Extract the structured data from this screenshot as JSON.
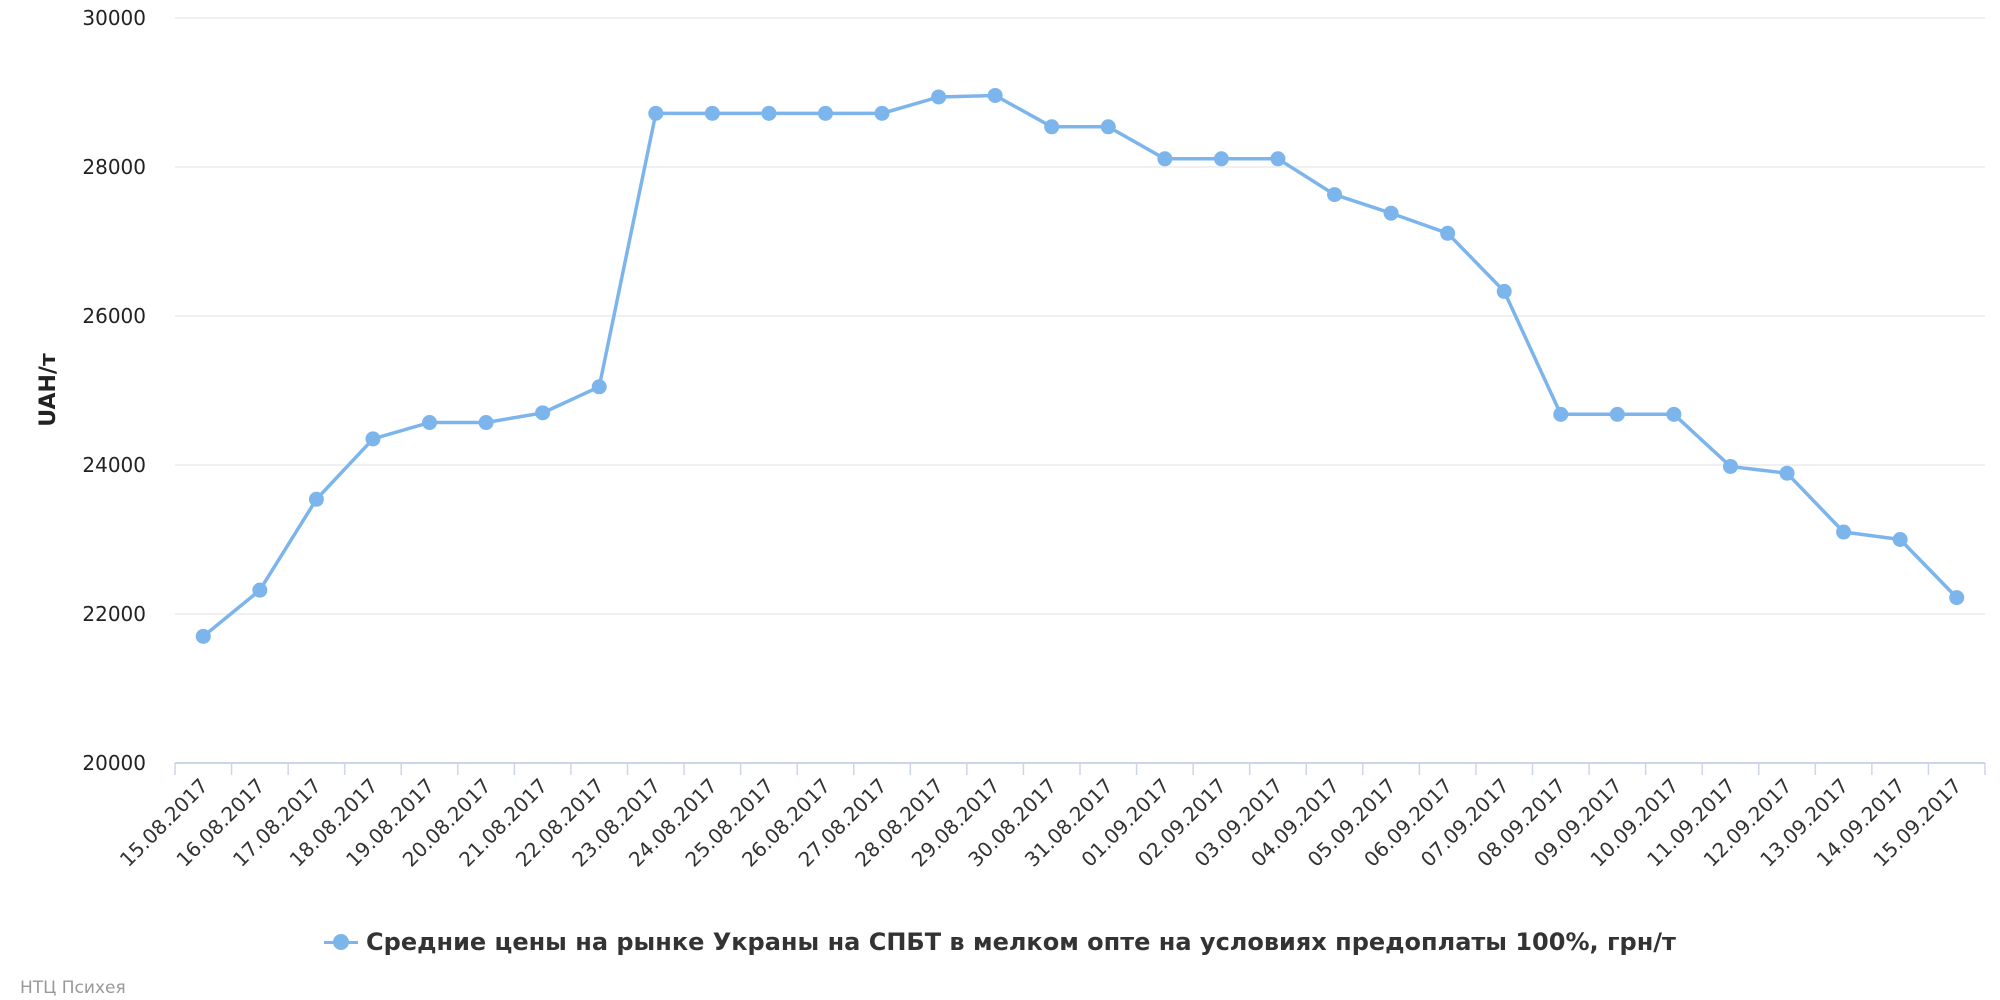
{
  "colors": {
    "series": "#7cb5ec",
    "grid": "#e0e0e0",
    "axis": "#ccd6eb"
  },
  "legend": {
    "label": "Средние цены на рынке Украны на СПБТ в мелком опте на условиях предоплаты 100%, грн/т"
  },
  "credits": "НТЦ Психея",
  "chart_data": {
    "type": "line",
    "title": "",
    "xlabel": "",
    "ylabel": "UAH/т",
    "ylim": [
      20000,
      30000
    ],
    "y_ticks": [
      "20000",
      "22000",
      "24000",
      "26000",
      "28000",
      "30000"
    ],
    "grid": true,
    "legend_position": "bottom-center",
    "categories": [
      "15.08.2017",
      "16.08.2017",
      "17.08.2017",
      "18.08.2017",
      "19.08.2017",
      "20.08.2017",
      "21.08.2017",
      "22.08.2017",
      "23.08.2017",
      "24.08.2017",
      "25.08.2017",
      "26.08.2017",
      "27.08.2017",
      "28.08.2017",
      "29.08.2017",
      "30.08.2017",
      "31.08.2017",
      "01.09.2017",
      "02.09.2017",
      "03.09.2017",
      "04.09.2017",
      "05.09.2017",
      "06.09.2017",
      "07.09.2017",
      "08.09.2017",
      "09.09.2017",
      "10.09.2017",
      "11.09.2017",
      "12.09.2017",
      "13.09.2017",
      "14.09.2017",
      "15.09.2017"
    ],
    "series": [
      {
        "name": "Средние цены на рынке Украны на СПБТ в мелком опте на условиях предоплаты 100%, грн/т",
        "values": [
          21700,
          22320,
          23540,
          24350,
          24570,
          24570,
          24700,
          25050,
          28720,
          28720,
          28720,
          28720,
          28720,
          28940,
          28960,
          28540,
          28540,
          28110,
          28110,
          28110,
          27630,
          27380,
          27110,
          26330,
          24680,
          24680,
          24680,
          23980,
          23890,
          23100,
          23000,
          22220
        ]
      }
    ]
  }
}
